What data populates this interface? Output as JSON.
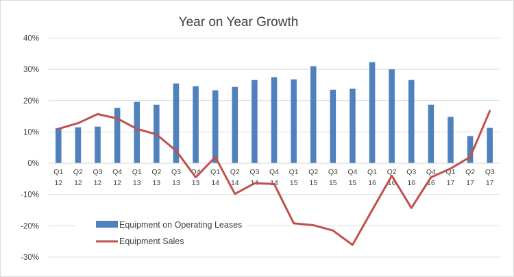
{
  "chart_data": {
    "type": "bar",
    "title": "Year on Year Growth",
    "xlabel": "",
    "ylabel": "",
    "ylim": [
      -0.3,
      0.4
    ],
    "yticks": [
      0.4,
      0.3,
      0.2,
      0.1,
      0.0,
      -0.1,
      -0.2,
      -0.3
    ],
    "ytick_labels": [
      "40%",
      "30%",
      "20%",
      "10%",
      "0%",
      "-10%",
      "-20%",
      "-30%"
    ],
    "grid": true,
    "legend_position": "bottom-left",
    "categories": [
      [
        "Q1",
        "12"
      ],
      [
        "Q2",
        "12"
      ],
      [
        "Q3",
        "12"
      ],
      [
        "Q4",
        "12"
      ],
      [
        "Q1",
        "13"
      ],
      [
        "Q2",
        "13"
      ],
      [
        "Q3",
        "13"
      ],
      [
        "Q4",
        "13"
      ],
      [
        "Q1",
        "14"
      ],
      [
        "Q2",
        "14"
      ],
      [
        "Q3",
        "14"
      ],
      [
        "Q4",
        "14"
      ],
      [
        "Q1",
        "15"
      ],
      [
        "Q2",
        "15"
      ],
      [
        "Q3",
        "15"
      ],
      [
        "Q4",
        "15"
      ],
      [
        "Q1",
        "16"
      ],
      [
        "Q2",
        "16"
      ],
      [
        "Q3",
        "16"
      ],
      [
        "Q4",
        "16"
      ],
      [
        "Q1",
        "17"
      ],
      [
        "Q2",
        "17"
      ],
      [
        "Q3",
        "17"
      ]
    ],
    "series": [
      {
        "name": "Equipment on Operating Leases",
        "type": "bar",
        "color": "#4f81bd",
        "values": [
          0.112,
          0.115,
          0.117,
          0.177,
          0.196,
          0.187,
          0.255,
          0.246,
          0.233,
          0.244,
          0.266,
          0.275,
          0.268,
          0.31,
          0.235,
          0.238,
          0.323,
          0.3,
          0.266,
          0.187,
          0.148,
          0.087,
          0.113
        ]
      },
      {
        "name": "Equipment Sales",
        "type": "line",
        "color": "#c0504d",
        "values": [
          0.11,
          0.128,
          0.157,
          0.143,
          0.11,
          0.092,
          0.04,
          -0.045,
          0.02,
          -0.098,
          -0.064,
          -0.066,
          -0.192,
          -0.198,
          -0.215,
          -0.261,
          -0.15,
          -0.04,
          -0.143,
          -0.045,
          -0.017,
          0.02,
          0.167
        ]
      }
    ]
  }
}
